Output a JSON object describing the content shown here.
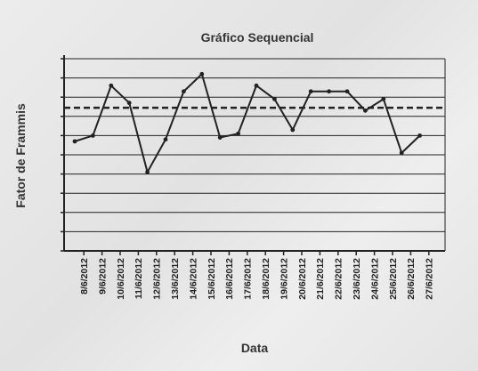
{
  "chart_data": {
    "type": "line",
    "title": "Gráfico Sequencial",
    "xlabel": "Data",
    "ylabel": "Fator de Frammis",
    "categories": [
      "8/6/2012",
      "9/6/2012",
      "10/6/2012",
      "11/6/2012",
      "12/6/2012",
      "13/6/2012",
      "14/6/2012",
      "15/6/2012",
      "16/6/2012",
      "17/6/2012",
      "18/6/2012",
      "19/6/2012",
      "20/6/2012",
      "21/6/2012",
      "22/6/2012",
      "23/6/2012",
      "24/6/2012",
      "25/6/2012",
      "26/6/2012",
      "27/6/2012"
    ],
    "series": [
      {
        "values": [
          5.7,
          6.0,
          8.6,
          7.7,
          4.1,
          5.8,
          8.3,
          9.2,
          5.9,
          6.1,
          8.6,
          7.9,
          6.3,
          8.3,
          8.3,
          8.3,
          7.3,
          7.9,
          5.1,
          6.0
        ]
      }
    ],
    "reference_line": {
      "value": 7.45,
      "style": "dashed"
    },
    "ylim": [
      0,
      10
    ],
    "y_gridlines": 10,
    "grid": true,
    "colors": {
      "line": "#222222",
      "grid": "#222222",
      "reference": "#222222"
    }
  }
}
